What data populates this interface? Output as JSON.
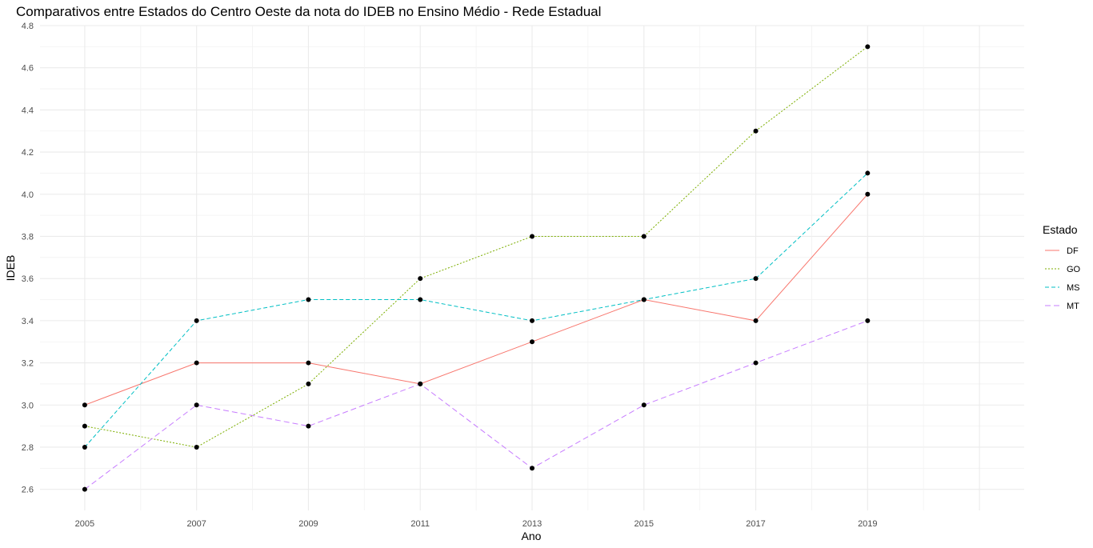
{
  "chart_data": {
    "type": "line",
    "title": "Comparativos entre Estados do Centro Oeste da nota do IDEB no Ensino Médio - Rede Estadual",
    "xlabel": "Ano",
    "ylabel": "IDEB",
    "x": [
      2005,
      2007,
      2009,
      2011,
      2013,
      2015,
      2017,
      2019
    ],
    "x_ticks": [
      "2005",
      "2007",
      "2009",
      "2011",
      "2013",
      "2015",
      "2017",
      "2019"
    ],
    "xlim": [
      2004.2,
      2021.8
    ],
    "y_ticks": [
      "2.6",
      "2.8",
      "3.0",
      "3.2",
      "3.4",
      "3.6",
      "3.8",
      "4.0",
      "4.2",
      "4.4",
      "4.6",
      "4.8"
    ],
    "ylim": [
      2.5,
      4.8
    ],
    "grid": true,
    "legend": {
      "title": "Estado",
      "position": "right"
    },
    "series": [
      {
        "name": "DF",
        "color": "#F8766D",
        "dash": "solid",
        "values": [
          3.0,
          3.2,
          3.2,
          3.1,
          3.3,
          3.5,
          3.4,
          4.0
        ]
      },
      {
        "name": "GO",
        "color": "#7CAE00",
        "dash": "dotted",
        "values": [
          2.9,
          2.8,
          3.1,
          3.6,
          3.8,
          3.8,
          4.3,
          4.7
        ]
      },
      {
        "name": "MS",
        "color": "#00BFC4",
        "dash": "dashed",
        "values": [
          2.8,
          3.4,
          3.5,
          3.5,
          3.4,
          3.5,
          3.6,
          4.1
        ]
      },
      {
        "name": "MT",
        "color": "#C77CFF",
        "dash": "longdash",
        "values": [
          2.6,
          3.0,
          2.9,
          3.1,
          2.7,
          3.0,
          3.2,
          3.4
        ]
      }
    ]
  }
}
